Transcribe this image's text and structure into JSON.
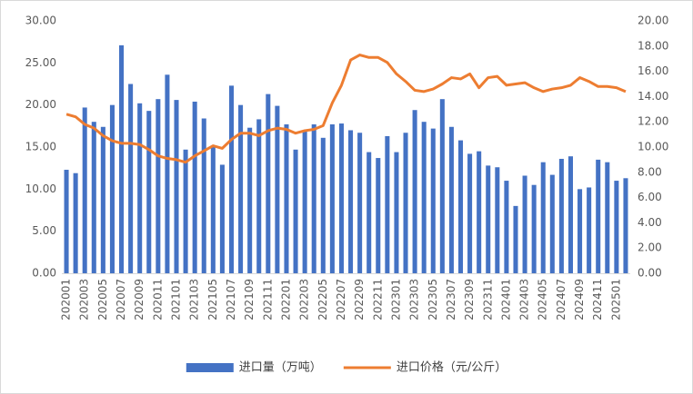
{
  "chart_data": {
    "type": "bar-line",
    "categories": [
      "202001",
      null,
      "202003",
      null,
      "202005",
      null,
      "202007",
      null,
      "202009",
      null,
      "202011",
      null,
      "202101",
      null,
      "202103",
      null,
      "202105",
      null,
      "202107",
      null,
      "202109",
      null,
      "202111",
      null,
      "202201",
      null,
      "202203",
      null,
      "202205",
      null,
      "202207",
      null,
      "202209",
      null,
      "202211",
      null,
      "202301",
      null,
      "202303",
      null,
      "202305",
      null,
      "202307",
      null,
      "202309",
      null,
      "202311",
      null,
      "202401",
      null,
      "202403",
      null,
      "202405",
      null,
      "202407",
      null,
      "202409",
      null,
      "202411",
      null,
      "202501",
      null
    ],
    "series": [
      {
        "name": "进口量（万吨）",
        "type": "bar",
        "color": "#4472c4",
        "values": [
          12.3,
          11.9,
          19.7,
          18.0,
          17.4,
          20.0,
          27.1,
          22.5,
          20.2,
          19.3,
          20.7,
          23.6,
          20.6,
          14.7,
          20.4,
          18.4,
          15.1,
          12.9,
          22.3,
          20.0,
          17.3,
          18.3,
          21.3,
          19.9,
          17.7,
          14.7,
          16.9,
          17.7,
          16.1,
          17.7,
          17.8,
          17.0,
          16.7,
          14.4,
          13.7,
          16.3,
          14.4,
          16.7,
          19.4,
          18.0,
          17.2,
          20.7,
          17.4,
          15.8,
          14.2,
          14.5,
          12.8,
          12.6,
          11.0,
          8.0,
          11.6,
          10.5,
          13.2,
          11.7,
          13.6,
          13.9,
          10.0,
          10.2,
          13.5,
          13.2,
          11.0,
          11.3
        ]
      },
      {
        "name": "进口价格（元/公斤）",
        "type": "line",
        "axis": "y2",
        "color": "#ed7d31",
        "values": [
          12.6,
          12.4,
          11.8,
          11.5,
          10.9,
          10.5,
          10.3,
          10.3,
          10.2,
          9.8,
          9.3,
          9.1,
          9.0,
          8.8,
          9.3,
          9.7,
          10.1,
          9.9,
          10.6,
          11.1,
          11.1,
          10.9,
          11.3,
          11.5,
          11.4,
          11.1,
          11.3,
          11.4,
          11.7,
          13.5,
          14.9,
          16.9,
          17.3,
          17.1,
          17.1,
          16.7,
          15.8,
          15.2,
          14.5,
          14.4,
          14.6,
          15.0,
          15.5,
          15.4,
          15.8,
          14.7,
          15.5,
          15.6,
          14.9,
          15.0,
          15.1,
          14.7,
          14.4,
          14.6,
          14.7,
          14.9,
          15.5,
          15.2,
          14.8,
          14.8,
          14.7,
          14.4
        ]
      }
    ],
    "ylim": [
      0,
      30
    ],
    "yticks": [
      {
        "value": 0,
        "label": "0.00"
      },
      {
        "value": 5,
        "label": "5.00"
      },
      {
        "value": 10,
        "label": "10.00"
      },
      {
        "value": 15,
        "label": "15.00"
      },
      {
        "value": 20,
        "label": "20.00"
      },
      {
        "value": 25,
        "label": "25.00"
      },
      {
        "value": 30,
        "label": "30.00"
      }
    ],
    "y2lim": [
      0,
      20
    ],
    "y2ticks": [
      {
        "value": 0,
        "label": "0.00"
      },
      {
        "value": 2,
        "label": "2.00"
      },
      {
        "value": 4,
        "label": "4.00"
      },
      {
        "value": 6,
        "label": "6.00"
      },
      {
        "value": 8,
        "label": "8.00"
      },
      {
        "value": 10,
        "label": "10.00"
      },
      {
        "value": 12,
        "label": "12.00"
      },
      {
        "value": 14,
        "label": "14.00"
      },
      {
        "value": 16,
        "label": "16.00"
      },
      {
        "value": 18,
        "label": "18.00"
      },
      {
        "value": 20,
        "label": "20.00"
      }
    ],
    "grid": false,
    "legend": "bottom"
  }
}
